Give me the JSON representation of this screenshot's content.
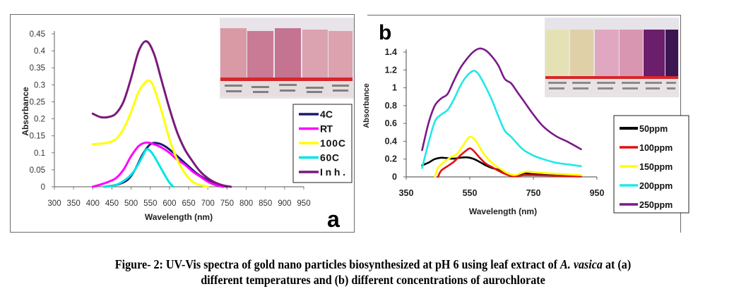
{
  "chart_data": [
    {
      "type": "line",
      "panel_label": "a",
      "title": "",
      "xlabel": "Wavelength (nm)",
      "ylabel": "Absorbance",
      "xlim": [
        300,
        950
      ],
      "ylim": [
        0,
        0.45
      ],
      "xticks": [
        "300",
        "350",
        "400",
        "450",
        "500",
        "550",
        "600",
        "650",
        "700",
        "750",
        "800",
        "850",
        "900",
        "950"
      ],
      "yticks": [
        "0",
        "0.05",
        "0.1",
        "0.15",
        "0.2",
        "0.25",
        "0.3",
        "0.35",
        "0.4",
        "0.45"
      ],
      "legend_position": "right",
      "grid": false,
      "inset": "photo of five vials with pink gold nanoparticle solutions",
      "series": [
        {
          "name": "4C",
          "color": "#1a1a6e",
          "x": [
            430,
            460,
            490,
            510,
            530,
            550,
            570,
            590,
            610,
            630,
            650,
            670,
            690,
            710,
            730,
            750
          ],
          "y": [
            0,
            0.005,
            0.02,
            0.05,
            0.095,
            0.125,
            0.128,
            0.118,
            0.1,
            0.08,
            0.06,
            0.04,
            0.025,
            0.012,
            0.005,
            0
          ]
        },
        {
          "name": "RT",
          "color": "#ff00ff",
          "x": [
            400,
            430,
            460,
            480,
            500,
            520,
            540,
            560,
            580,
            600,
            620,
            640,
            660,
            680,
            700,
            720,
            740
          ],
          "y": [
            0,
            0.01,
            0.025,
            0.05,
            0.09,
            0.12,
            0.13,
            0.125,
            0.115,
            0.1,
            0.08,
            0.065,
            0.045,
            0.03,
            0.015,
            0.005,
            0
          ]
        },
        {
          "name": "100C",
          "color": "#ffff00",
          "x": [
            400,
            420,
            440,
            460,
            480,
            500,
            520,
            540,
            550,
            560,
            580,
            600,
            620,
            640,
            660,
            680,
            700
          ],
          "y": [
            0.125,
            0.127,
            0.13,
            0.14,
            0.17,
            0.22,
            0.28,
            0.31,
            0.31,
            0.29,
            0.22,
            0.14,
            0.08,
            0.04,
            0.015,
            0.005,
            0
          ]
        },
        {
          "name": "60C",
          "color": "#00e5e5",
          "x": [
            430,
            460,
            490,
            510,
            530,
            540,
            550,
            560,
            570,
            580,
            590,
            600,
            610
          ],
          "y": [
            0,
            0.005,
            0.025,
            0.05,
            0.09,
            0.11,
            0.105,
            0.09,
            0.07,
            0.05,
            0.03,
            0.012,
            0
          ]
        },
        {
          "name": "Inh.",
          "color": "#7a1a7a",
          "x": [
            400,
            420,
            440,
            460,
            480,
            500,
            520,
            540,
            560,
            580,
            600,
            620,
            640,
            660,
            680,
            700,
            720,
            740,
            760
          ],
          "y": [
            0.215,
            0.205,
            0.205,
            0.215,
            0.25,
            0.32,
            0.4,
            0.428,
            0.39,
            0.31,
            0.23,
            0.16,
            0.11,
            0.075,
            0.045,
            0.025,
            0.012,
            0.004,
            0
          ]
        }
      ]
    },
    {
      "type": "line",
      "panel_label": "b",
      "title": "",
      "xlabel": "Wavelength (nm)",
      "ylabel": "Absorbance",
      "xlim": [
        350,
        950
      ],
      "ylim": [
        0,
        1.4
      ],
      "xticks": [
        "350",
        "550",
        "750",
        "950"
      ],
      "yticks": [
        "0",
        "0.2",
        "0.4",
        "0.6",
        "0.8",
        "1",
        "1.2",
        "1.4"
      ],
      "legend_position": "right",
      "grid": false,
      "inset": "photo of six vials ranging from pale yellow to pink to dark purple",
      "series": [
        {
          "name": "50ppm",
          "color": "#000000",
          "x": [
            400,
            420,
            440,
            460,
            480,
            500,
            520,
            540,
            560,
            580,
            600,
            620,
            640,
            660,
            680,
            700,
            720,
            750,
            800,
            850
          ],
          "y": [
            0.13,
            0.16,
            0.2,
            0.215,
            0.21,
            0.205,
            0.215,
            0.22,
            0.205,
            0.17,
            0.13,
            0.1,
            0.08,
            0.05,
            0.02,
            0.02,
            0.04,
            0.03,
            0.02,
            0.015
          ]
        },
        {
          "name": "100ppm",
          "color": "#e01010",
          "x": [
            450,
            460,
            480,
            500,
            520,
            540,
            550,
            560,
            580,
            600,
            620,
            640,
            660,
            680,
            700,
            720,
            750,
            800,
            850,
            900
          ],
          "y": [
            0,
            0.07,
            0.12,
            0.17,
            0.24,
            0.3,
            0.32,
            0.3,
            0.22,
            0.15,
            0.11,
            0.07,
            0.035,
            0.01,
            0.01,
            0.02,
            0.02,
            0.015,
            0.01,
            0.005
          ]
        },
        {
          "name": "150ppm",
          "color": "#ffff00",
          "x": [
            440,
            450,
            470,
            490,
            510,
            530,
            550,
            570,
            590,
            610,
            630,
            650,
            670,
            690,
            710,
            730,
            760,
            800,
            850,
            900
          ],
          "y": [
            0,
            0.1,
            0.17,
            0.22,
            0.26,
            0.36,
            0.45,
            0.4,
            0.28,
            0.19,
            0.13,
            0.08,
            0.04,
            0.02,
            0.04,
            0.06,
            0.05,
            0.04,
            0.03,
            0.02
          ]
        },
        {
          "name": "200ppm",
          "color": "#20e8e8",
          "x": [
            400,
            420,
            440,
            460,
            480,
            500,
            520,
            540,
            560,
            570,
            580,
            600,
            620,
            640,
            660,
            680,
            700,
            720,
            750,
            780,
            820,
            860,
            900
          ],
          "y": [
            0.1,
            0.38,
            0.62,
            0.7,
            0.75,
            0.87,
            1.02,
            1.13,
            1.19,
            1.18,
            1.14,
            1.01,
            0.86,
            0.68,
            0.52,
            0.45,
            0.37,
            0.3,
            0.24,
            0.2,
            0.16,
            0.14,
            0.12
          ]
        },
        {
          "name": "250ppm",
          "color": "#7a1a8a",
          "x": [
            400,
            420,
            440,
            460,
            480,
            500,
            520,
            540,
            560,
            580,
            600,
            620,
            640,
            660,
            680,
            700,
            720,
            750,
            780,
            820,
            860,
            900
          ],
          "y": [
            0.3,
            0.6,
            0.8,
            0.88,
            0.93,
            1.08,
            1.22,
            1.32,
            1.4,
            1.44,
            1.42,
            1.35,
            1.25,
            1.1,
            1.05,
            0.95,
            0.85,
            0.7,
            0.57,
            0.46,
            0.39,
            0.31
          ]
        }
      ]
    }
  ],
  "caption": {
    "line1_prefix": "Figure- 2:  UV-Vis spectra of gold nano particles biosynthesized at pH 6 using leaf extract of ",
    "line1_italic": "A. vasica",
    "line1_suffix": " at (a)",
    "line2": "different temperatures and (b) different concentrations of aurochlorate"
  }
}
